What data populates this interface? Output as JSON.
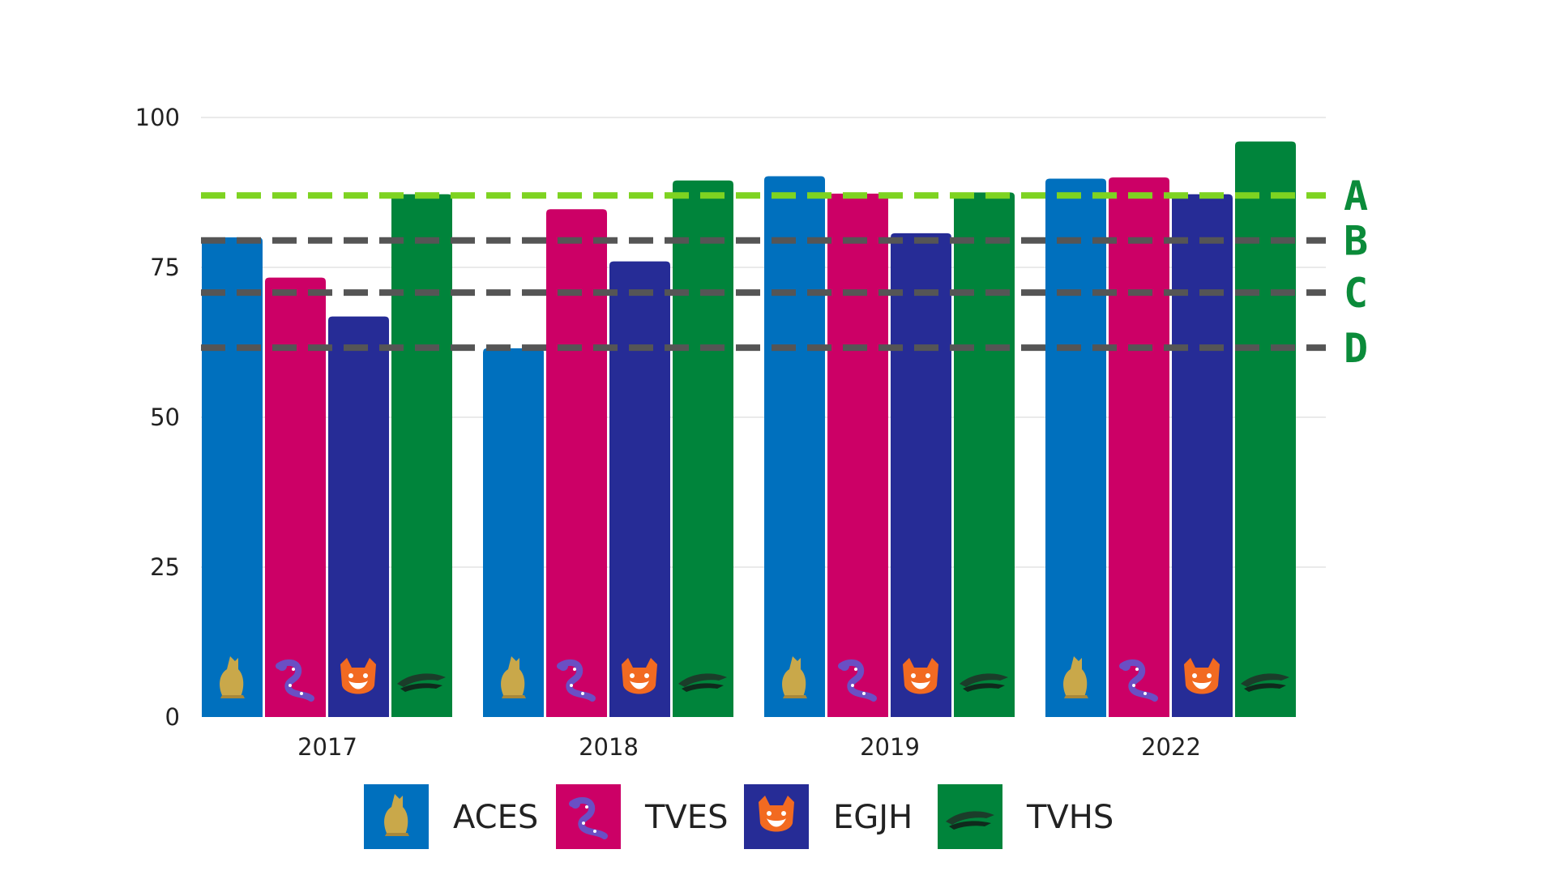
{
  "chart_data": {
    "type": "bar",
    "categories": [
      "2017",
      "2018",
      "2019",
      "2022"
    ],
    "series": [
      {
        "name": "ACES",
        "color": "#0070BE",
        "icon": "howling-coyote-icon",
        "values": [
          80,
          61.5,
          90.2,
          89.8
        ]
      },
      {
        "name": "TVES",
        "color": "#CC0066",
        "icon": "lizard-icon",
        "values": [
          73.3,
          84.7,
          87.3,
          90
        ]
      },
      {
        "name": "EGJH",
        "color": "#262C96",
        "icon": "bobcat-icon",
        "values": [
          66.8,
          76,
          80.7,
          87.2
        ]
      },
      {
        "name": "TVHS",
        "color": "#00843B",
        "icon": "hawk-icon",
        "values": [
          87.2,
          89.5,
          87.5,
          96
        ]
      }
    ],
    "yticks": [
      0,
      25,
      50,
      75,
      100
    ],
    "ylim": [
      0,
      100
    ],
    "grid": true,
    "title": "",
    "xlabel": "",
    "ylabel": "",
    "legend_position": "bottom",
    "thresholds": [
      {
        "label": "A",
        "value": 87,
        "color": "#7ED321"
      },
      {
        "label": "B",
        "value": 79.5,
        "color": "#555555"
      },
      {
        "label": "C",
        "value": 70.8,
        "color": "#555555"
      },
      {
        "label": "D",
        "value": 61.6,
        "color": "#555555"
      }
    ]
  }
}
